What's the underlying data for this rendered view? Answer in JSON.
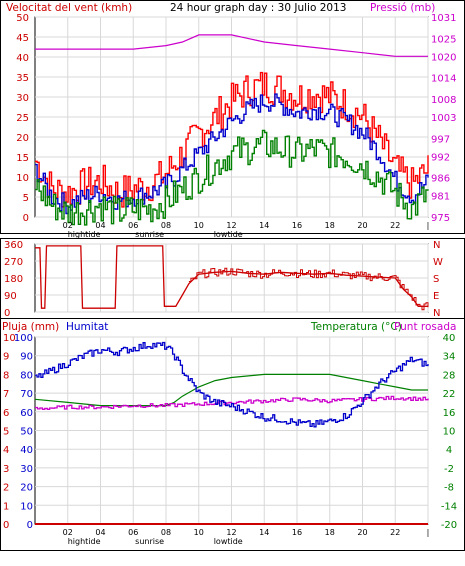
{
  "chart_data": [
    {
      "type": "line",
      "title": "24 hour graph day : 30 Julio 2013",
      "ylabel_left": "Velocitat del vent (kmh)",
      "ylabel_right": "Pressió (mb)",
      "x_ticks": [
        "02",
        "04",
        "06",
        "08",
        "10",
        "12",
        "14",
        "16",
        "18",
        "20",
        "22",
        "|"
      ],
      "x_markers": [
        {
          "label": "hightide",
          "x": 3
        },
        {
          "label": "sunrise",
          "x": 7
        },
        {
          "label": "lowtide",
          "x": 11.8
        }
      ],
      "xlim": [
        0,
        24
      ],
      "ylim_left": [
        0,
        50
      ],
      "ylim_right": [
        975,
        1031
      ],
      "y_ticks_left": [
        0,
        5,
        10,
        15,
        20,
        25,
        30,
        35,
        40,
        45,
        50
      ],
      "y_ticks_right": [
        975,
        981,
        986,
        992,
        997,
        1003,
        1008,
        1014,
        1020,
        1025,
        1031
      ],
      "colors": {
        "gust": "#ff0000",
        "avg": "#0000cc",
        "min": "#008000",
        "pressure": "#cc00cc"
      },
      "series": [
        {
          "key": "gust",
          "axis": "left",
          "x": [
            0,
            1,
            2,
            3,
            4,
            5,
            6,
            7,
            8,
            9,
            10,
            11,
            12,
            13,
            14,
            15,
            16,
            17,
            18,
            19,
            20,
            21,
            22,
            23,
            24
          ],
          "values": [
            14,
            7,
            6,
            8,
            9,
            6,
            7,
            8,
            11,
            16,
            21,
            25,
            29,
            32,
            33,
            32,
            30,
            31,
            30,
            28,
            25,
            19,
            12,
            8,
            12
          ]
        },
        {
          "key": "avg",
          "axis": "left",
          "x": [
            0,
            1,
            2,
            3,
            4,
            5,
            6,
            7,
            8,
            9,
            10,
            11,
            12,
            13,
            14,
            15,
            16,
            17,
            18,
            19,
            20,
            21,
            22,
            23,
            24
          ],
          "values": [
            12,
            5,
            3,
            5,
            6,
            4,
            5,
            6,
            8,
            12,
            16,
            20,
            24,
            27,
            29,
            28,
            26,
            27,
            26,
            24,
            21,
            16,
            9,
            5,
            9
          ]
        },
        {
          "key": "min",
          "axis": "left",
          "x": [
            0,
            1,
            2,
            3,
            4,
            5,
            6,
            7,
            8,
            9,
            10,
            11,
            12,
            13,
            14,
            15,
            16,
            17,
            18,
            19,
            20,
            21,
            22,
            23,
            24
          ],
          "values": [
            8,
            3,
            1,
            2,
            3,
            1,
            2,
            2,
            4,
            7,
            10,
            13,
            16,
            17,
            18,
            17,
            16,
            17,
            16,
            15,
            13,
            10,
            6,
            2,
            6
          ]
        },
        {
          "key": "pressure",
          "axis": "right",
          "x": [
            0,
            2,
            4,
            6,
            8,
            9,
            10,
            11,
            12,
            13,
            14,
            16,
            18,
            20,
            22,
            24
          ],
          "values": [
            1022,
            1022,
            1022,
            1022,
            1023,
            1024,
            1026,
            1026,
            1026,
            1025,
            1024,
            1023,
            1022,
            1021,
            1020,
            1020
          ]
        }
      ]
    },
    {
      "type": "line",
      "ylabels_left": [
        "360",
        "270",
        "180",
        "90",
        "0"
      ],
      "ylabels_right": [
        "N",
        "W",
        "S",
        "E",
        "N"
      ],
      "ylim": [
        0,
        360
      ],
      "xlim": [
        0,
        24
      ],
      "color": "#cc0000",
      "series": [
        {
          "name": "",
          "x": [
            0,
            0.3,
            0.4,
            0.6,
            0.7,
            2.8,
            2.9,
            4.9,
            5.0,
            7.8,
            7.9,
            8.6,
            9.0,
            9.4,
            10,
            11,
            12,
            13,
            14,
            15,
            16,
            17,
            18,
            19,
            20,
            21,
            22,
            22.5,
            23,
            23.4,
            24
          ],
          "values": [
            340,
            340,
            20,
            20,
            350,
            350,
            20,
            20,
            350,
            350,
            30,
            30,
            90,
            150,
            200,
            210,
            215,
            205,
            200,
            210,
            205,
            200,
            205,
            195,
            190,
            185,
            180,
            120,
            80,
            30,
            30
          ]
        }
      ]
    },
    {
      "type": "line",
      "ylabel_left": "Pluja (mm)",
      "ylabel_left2": "Humitat",
      "ylabel_right": "Temperatura (°C)",
      "ylabel_right2": "Punt rosada",
      "x_ticks": [
        "02",
        "04",
        "06",
        "08",
        "10",
        "12",
        "14",
        "16",
        "18",
        "20",
        "22",
        "|"
      ],
      "x_markers": [
        {
          "label": "hightide",
          "x": 3
        },
        {
          "label": "sunrise",
          "x": 7
        },
        {
          "label": "lowtide",
          "x": 11.8
        }
      ],
      "xlim": [
        0,
        24
      ],
      "rain_ticks": [
        0,
        1,
        2,
        3,
        4,
        5,
        6,
        7,
        8,
        9,
        10
      ],
      "humidity_ticks": [
        0,
        10,
        20,
        30,
        40,
        50,
        60,
        70,
        80,
        90,
        100
      ],
      "temp_ticks": [
        -20,
        -14,
        -8,
        -2,
        4,
        10,
        16,
        22,
        28,
        34,
        40
      ],
      "ylim_rain": [
        0,
        10
      ],
      "ylim_humidity": [
        0,
        100
      ],
      "ylim_temp": [
        -20,
        40
      ],
      "colors": {
        "rain": "#cc0000",
        "humidity": "#0000cc",
        "temperature": "#008000",
        "dew_point": "#cc00cc"
      },
      "series": [
        {
          "key": "temperature",
          "axis": "temp",
          "x": [
            0,
            2,
            4,
            6,
            7,
            8,
            8.5,
            9,
            10,
            11,
            12,
            14,
            16,
            18,
            19,
            20,
            21,
            22,
            23,
            24
          ],
          "values": [
            20,
            19,
            18,
            18,
            18,
            18,
            19,
            21,
            24,
            26,
            27,
            28,
            28,
            28,
            27,
            26,
            25,
            24,
            23,
            23
          ]
        },
        {
          "key": "dew_point",
          "axis": "temp",
          "x": [
            0,
            2,
            4,
            6,
            8,
            10,
            12,
            14,
            16,
            18,
            20,
            22,
            24
          ],
          "values": [
            17,
            17.5,
            17.5,
            18,
            18,
            18.5,
            19,
            19.5,
            20,
            19.5,
            20,
            20.5,
            20
          ]
        },
        {
          "key": "humidity",
          "axis": "humidity",
          "x": [
            0,
            1,
            2,
            3,
            4,
            5,
            6,
            7,
            8,
            8.5,
            9,
            10,
            11,
            12,
            13,
            14,
            15,
            16,
            17,
            18,
            19,
            20,
            21,
            22,
            23,
            24
          ],
          "values": [
            78,
            82,
            86,
            90,
            93,
            92,
            94,
            96,
            95,
            90,
            82,
            70,
            65,
            63,
            60,
            57,
            56,
            54,
            53,
            55,
            58,
            66,
            75,
            82,
            88,
            85
          ]
        },
        {
          "key": "rain",
          "axis": "rain",
          "x": [
            0,
            24
          ],
          "values": [
            0,
            0
          ]
        }
      ]
    }
  ]
}
